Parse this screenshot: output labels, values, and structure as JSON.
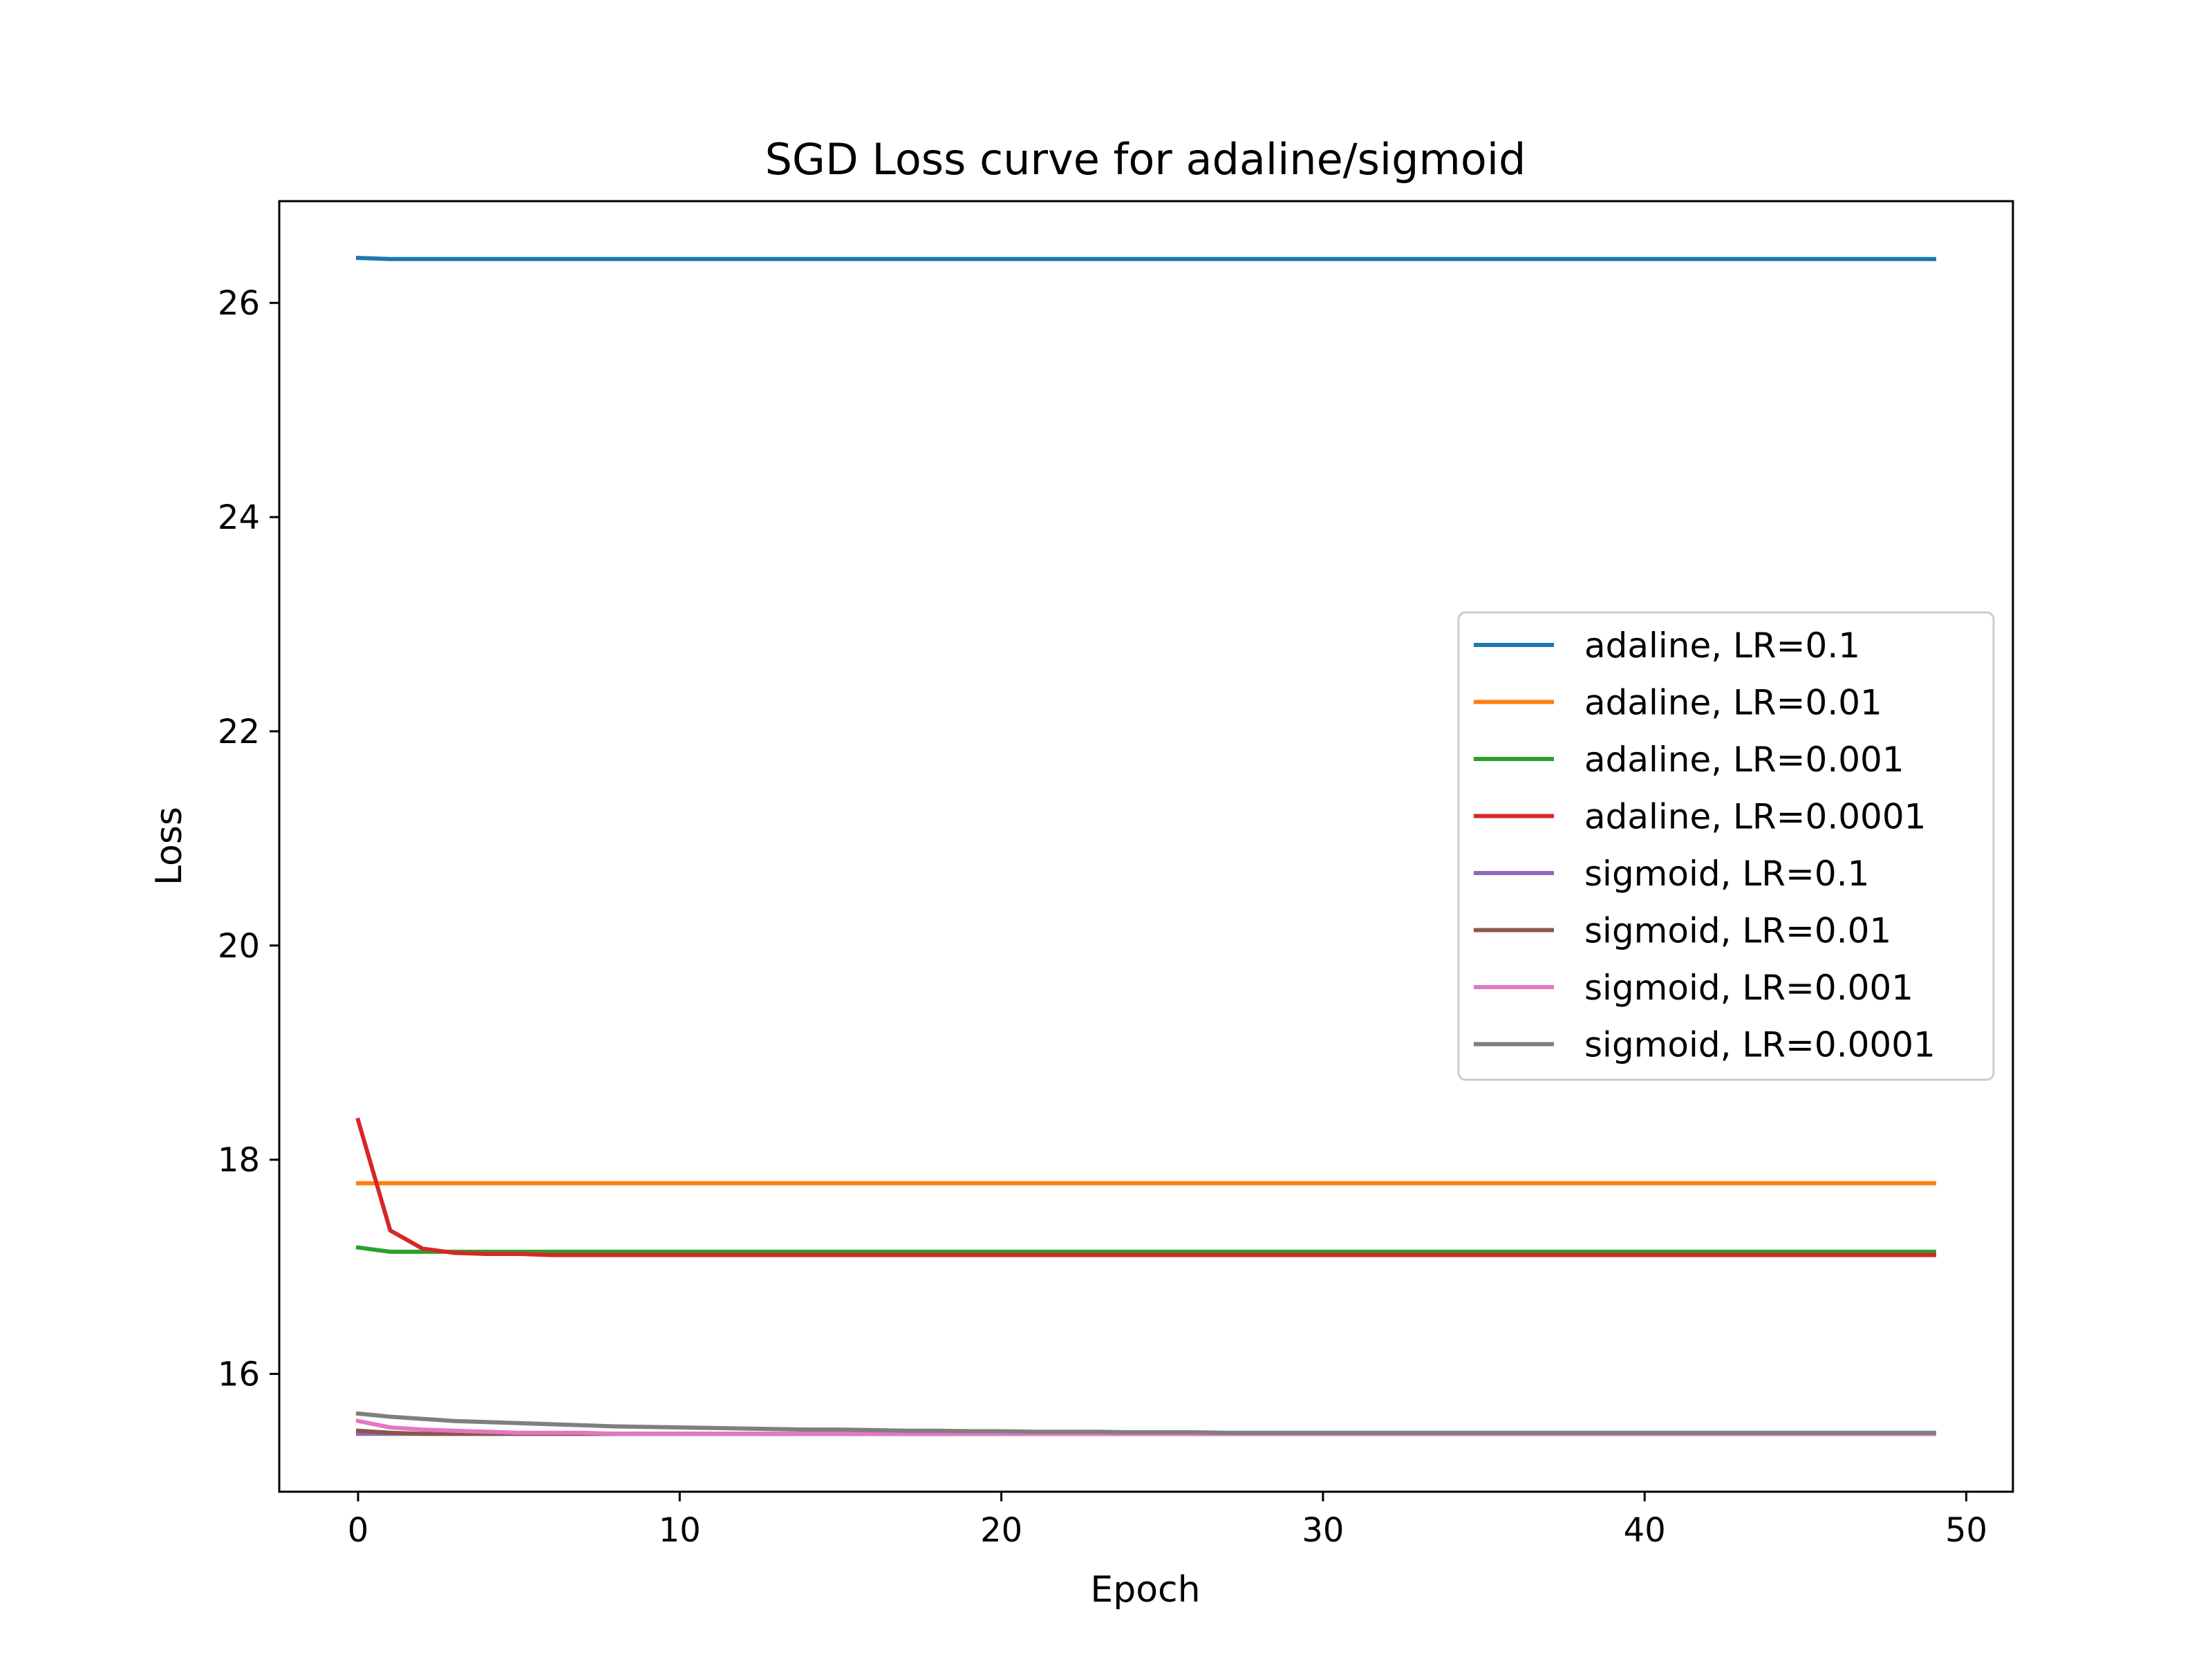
{
  "chart_data": {
    "type": "line",
    "title": "SGD Loss curve for adaline/sigmoid",
    "xlabel": "Epoch",
    "ylabel": "Loss",
    "xlim": [
      -2.45,
      51.45
    ],
    "ylim": [
      14.9,
      26.95
    ],
    "xticks": [
      0,
      10,
      20,
      30,
      40,
      50
    ],
    "yticks": [
      16,
      18,
      20,
      22,
      24,
      26
    ],
    "grid": false,
    "legend_position": "center-right",
    "series": [
      {
        "name": "adaline, LR=0.1",
        "color": "#1f77b4",
        "values": [
          26.42,
          26.41
        ]
      },
      {
        "name": "adaline, LR=0.01",
        "color": "#ff7f0e",
        "values": [
          17.78,
          17.78
        ]
      },
      {
        "name": "adaline, LR=0.001",
        "color": "#2ca02c",
        "values": [
          17.18,
          17.14,
          17.14
        ]
      },
      {
        "name": "adaline, LR=0.0001",
        "color": "#d62728",
        "values": [
          18.37,
          17.34,
          17.17,
          17.13,
          17.12,
          17.12,
          17.11
        ]
      },
      {
        "name": "sigmoid, LR=0.1",
        "color": "#9467bd",
        "values": [
          15.44,
          15.44
        ]
      },
      {
        "name": "sigmoid, LR=0.01",
        "color": "#8c564b",
        "values": [
          15.47,
          15.45,
          15.44,
          15.44
        ]
      },
      {
        "name": "sigmoid, LR=0.001",
        "color": "#e377c2",
        "values": [
          15.56,
          15.5,
          15.48,
          15.47,
          15.46,
          15.45,
          15.45,
          15.45,
          15.44
        ]
      },
      {
        "name": "sigmoid, LR=0.0001",
        "color": "#7f7f7f",
        "values": [
          15.63,
          15.6,
          15.58,
          15.56,
          15.55,
          15.54,
          15.53,
          15.52,
          15.51,
          15.505,
          15.5,
          15.495,
          15.49,
          15.485,
          15.48,
          15.48,
          15.475,
          15.47,
          15.47,
          15.465,
          15.465,
          15.46,
          15.46,
          15.46,
          15.455,
          15.455,
          15.455,
          15.45
        ]
      }
    ],
    "epochs": 50
  }
}
